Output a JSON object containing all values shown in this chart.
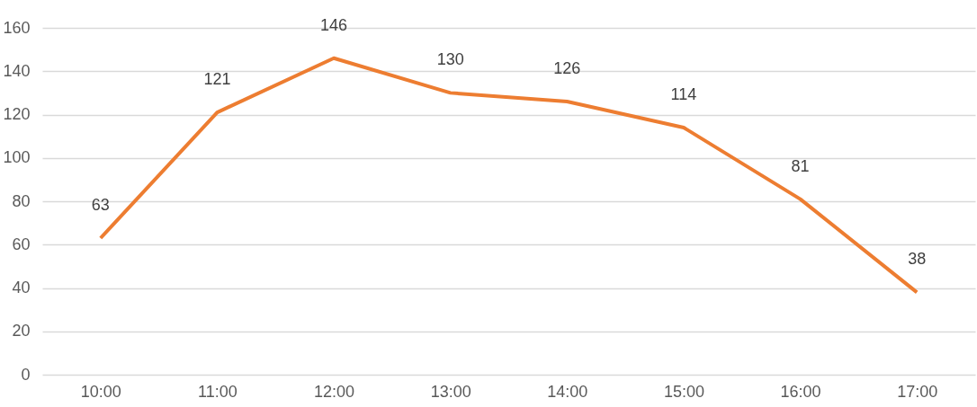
{
  "chart_data": {
    "type": "line",
    "categories": [
      "10:00",
      "11:00",
      "12:00",
      "13:00",
      "14:00",
      "15:00",
      "16:00",
      "17:00"
    ],
    "series": [
      {
        "color": "#ed7d31",
        "values": [
          63,
          121,
          146,
          130,
          126,
          114,
          81,
          38
        ]
      }
    ],
    "ylim": [
      0,
      160
    ],
    "yticks": [
      0,
      20,
      40,
      60,
      80,
      100,
      120,
      140,
      160
    ],
    "grid": "y",
    "data_labels": true
  }
}
